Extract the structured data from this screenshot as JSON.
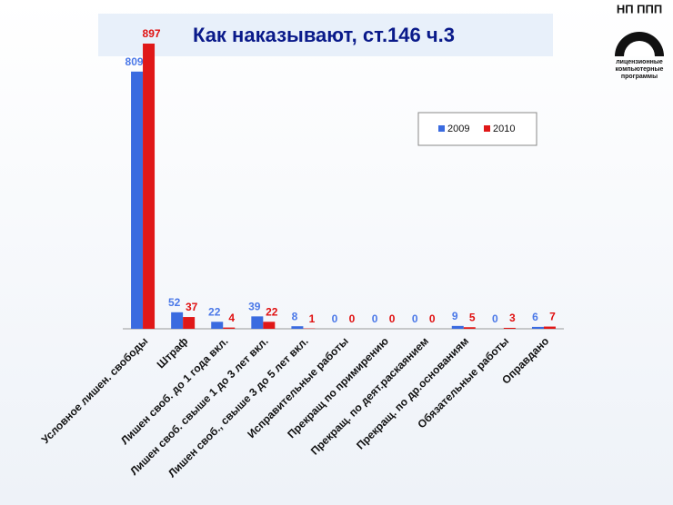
{
  "chart_data": {
    "type": "bar",
    "title": "Как наказывают, ст.146 ч.3",
    "categories": [
      "Условное лишен. свободы",
      "Штраф",
      "Лишен своб. до 1 года вкл.",
      "Лишен своб. свыше 1 до 3 лет вкл.",
      "Лишен своб., свыше 3 до 5 лет вкл.",
      "Исправительные работы",
      "Прекращ по примирению",
      "Прекращ. по деят.раскаянием",
      "Прекращ. по др.основаниям",
      "Обязательные работы",
      "Оправдано"
    ],
    "series": [
      {
        "name": "2009",
        "color": "#3a6be0",
        "label_color": "#4a78e8",
        "values": [
          809,
          52,
          22,
          39,
          8,
          0,
          0,
          0,
          9,
          0,
          6
        ]
      },
      {
        "name": "2010",
        "color": "#e01818",
        "label_color": "#e01010",
        "values": [
          897,
          37,
          4,
          22,
          1,
          0,
          0,
          0,
          5,
          3,
          7
        ]
      }
    ],
    "legend": "upper right"
  },
  "logo": {
    "title": "НП ППП",
    "lines": [
      "лицензионные",
      "компьютерные",
      "программы"
    ]
  }
}
